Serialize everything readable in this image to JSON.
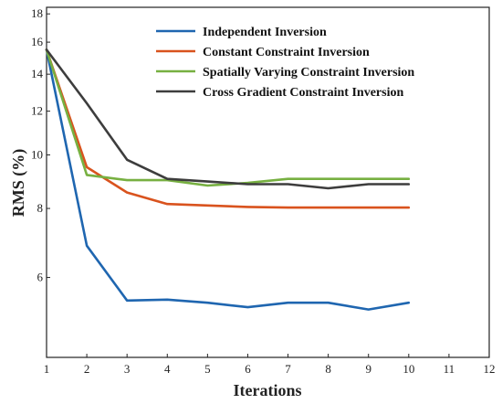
{
  "chart_data": {
    "type": "line",
    "title": "",
    "xlabel": "Iterations",
    "ylabel": "RMS (%)",
    "xlim": [
      1,
      12
    ],
    "ylim": [
      4.3,
      18.5
    ],
    "yscale": "log",
    "xticks": [
      1,
      2,
      3,
      4,
      5,
      6,
      7,
      8,
      9,
      10,
      11,
      12
    ],
    "yticks": [
      6,
      8,
      10,
      12,
      14,
      16,
      18
    ],
    "grid": false,
    "legend_position": "top-right",
    "x": [
      1,
      2,
      3,
      4,
      5,
      6,
      7,
      8,
      9,
      10
    ],
    "series": [
      {
        "name": "Independent Inversion",
        "color": "#1f66b0",
        "values": [
          15.5,
          6.85,
          5.45,
          5.47,
          5.4,
          5.3,
          5.4,
          5.4,
          5.25,
          5.4
        ]
      },
      {
        "name": "Constant Constraint Inversion",
        "color": "#d9531e",
        "values": [
          15.5,
          9.5,
          8.55,
          8.15,
          8.1,
          8.05,
          8.03,
          8.03,
          8.03,
          8.03
        ]
      },
      {
        "name": "Spatially Varying Constraint Inversion",
        "color": "#77b041",
        "values": [
          15.5,
          9.2,
          9.0,
          9.0,
          8.8,
          8.9,
          9.05,
          9.05,
          9.05,
          9.05
        ]
      },
      {
        "name": "Cross Gradient Constraint Inversion",
        "color": "#3d3d3d",
        "values": [
          15.5,
          12.4,
          9.8,
          9.05,
          8.95,
          8.85,
          8.85,
          8.7,
          8.85,
          8.85
        ]
      }
    ]
  }
}
